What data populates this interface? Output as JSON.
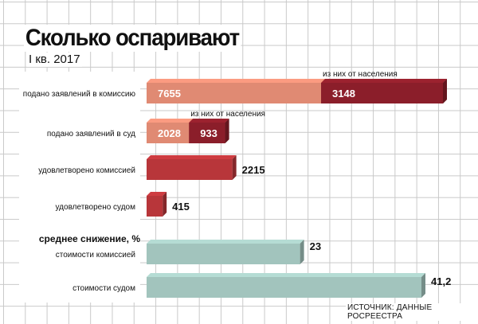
{
  "title": "Сколько оспаривают",
  "subtitle": "I кв. 2017",
  "source": "ИСТОЧНИК: ДАННЫЕ РОСРЕЕСТРА",
  "section_label": "среднее снижение, %",
  "colors": {
    "primary": "#e08a73",
    "subset": "#8b1e2a",
    "approved": "#b8363a",
    "reduction": "#a2c4bd",
    "grid": "#c9c9c9"
  },
  "chart_data": [
    {
      "type": "bar",
      "orientation": "horizontal",
      "stacked_overlay": true,
      "categories": [
        "подано заявлений в комиссию",
        "подано заявлений в суд",
        "удовлетворено комиссией",
        "удовлетворено судом"
      ],
      "values": [
        7655,
        2028,
        2215,
        415
      ],
      "subset": {
        "label": "из них от населения",
        "values": [
          3148,
          933,
          null,
          null
        ]
      }
    },
    {
      "type": "bar",
      "orientation": "horizontal",
      "title": "среднее снижение, %",
      "categories": [
        "стоимости комиссией",
        "стоимости судом"
      ],
      "values": [
        23,
        41.2
      ],
      "value_labels": [
        "23",
        "41,2"
      ]
    }
  ]
}
